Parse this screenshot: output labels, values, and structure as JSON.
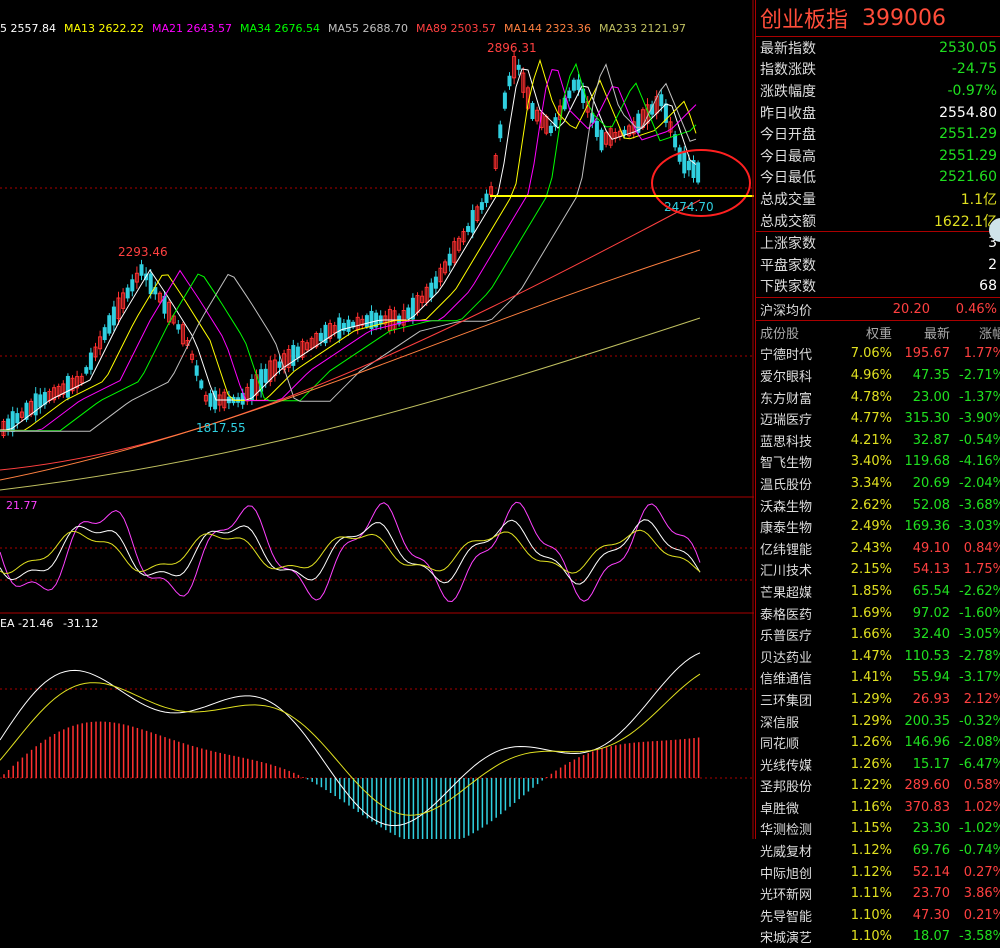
{
  "ma_bar": [
    {
      "label": "5 2557.84",
      "color": "#ffffff"
    },
    {
      "label": "MA13 2622.22",
      "color": "#ffff00"
    },
    {
      "label": "MA21 2643.57",
      "color": "#ff00ff"
    },
    {
      "label": "MA34 2676.54",
      "color": "#00ff00"
    },
    {
      "label": "MA55 2688.70",
      "color": "#c0c0c0"
    },
    {
      "label": "MA89 2503.57",
      "color": "#ff4040"
    },
    {
      "label": "MA144 2323.36",
      "color": "#ff8040"
    },
    {
      "label": "MA233 2121.97",
      "color": "#c0c060"
    }
  ],
  "annotations": {
    "high_top": "2896.31",
    "high_left": "2293.46",
    "low_mid": "1817.55",
    "low_recent": "2474.70"
  },
  "kdj_label": "21.77",
  "macd_label": {
    "a": "EA -21.46",
    "b": "-31.12"
  },
  "header": {
    "name": "创业板指",
    "code": "399006"
  },
  "quote": [
    {
      "label": "最新指数",
      "value": "2530.05",
      "cls": "dn"
    },
    {
      "label": "指数涨跌",
      "value": "-24.75",
      "cls": "dn"
    },
    {
      "label": "涨跌幅度",
      "value": "-0.97%",
      "cls": "dn"
    },
    {
      "label": "昨日收盘",
      "value": "2554.80",
      "cls": "wh"
    },
    {
      "label": "今日开盘",
      "value": "2551.29",
      "cls": "dn"
    },
    {
      "label": "今日最高",
      "value": "2551.29",
      "cls": "dn"
    },
    {
      "label": "今日最低",
      "value": "2521.60",
      "cls": "dn"
    },
    {
      "label": "总成交量",
      "value": "1.1亿",
      "cls": "yl"
    },
    {
      "label": "总成交额",
      "value": "1622.1亿",
      "cls": "yl"
    }
  ],
  "breadth": [
    {
      "label": "上涨家数",
      "value": "3"
    },
    {
      "label": "平盘家数",
      "value": "2"
    },
    {
      "label": "下跌家数",
      "value": "68"
    }
  ],
  "avg": {
    "label": "沪深均价",
    "price": "20.20",
    "pct": "0.46%"
  },
  "table_head": [
    "成份股",
    "权重",
    "最新",
    "涨幅"
  ],
  "stocks": [
    {
      "n": "宁德时代",
      "w": "7.06%",
      "p": "195.67",
      "c": "1.77%",
      "up": true
    },
    {
      "n": "爱尔眼科",
      "w": "4.96%",
      "p": "47.35",
      "c": "-2.71%",
      "up": false
    },
    {
      "n": "东方财富",
      "w": "4.78%",
      "p": "23.00",
      "c": "-1.37%",
      "up": false
    },
    {
      "n": "迈瑞医疗",
      "w": "4.77%",
      "p": "315.30",
      "c": "-3.90%",
      "up": false
    },
    {
      "n": "蓝思科技",
      "w": "4.21%",
      "p": "32.87",
      "c": "-0.54%",
      "up": false
    },
    {
      "n": "智飞生物",
      "w": "3.40%",
      "p": "119.68",
      "c": "-4.16%",
      "up": false
    },
    {
      "n": "温氏股份",
      "w": "3.34%",
      "p": "20.69",
      "c": "-2.04%",
      "up": false
    },
    {
      "n": "沃森生物",
      "w": "2.62%",
      "p": "52.08",
      "c": "-3.68%",
      "up": false
    },
    {
      "n": "康泰生物",
      "w": "2.49%",
      "p": "169.36",
      "c": "-3.03%",
      "up": false
    },
    {
      "n": "亿纬锂能",
      "w": "2.43%",
      "p": "49.10",
      "c": "0.84%",
      "up": true
    },
    {
      "n": "汇川技术",
      "w": "2.15%",
      "p": "54.13",
      "c": "1.75%",
      "up": true
    },
    {
      "n": "芒果超媒",
      "w": "1.85%",
      "p": "65.54",
      "c": "-2.62%",
      "up": false
    },
    {
      "n": "泰格医药",
      "w": "1.69%",
      "p": "97.02",
      "c": "-1.60%",
      "up": false
    },
    {
      "n": "乐普医疗",
      "w": "1.66%",
      "p": "32.40",
      "c": "-3.05%",
      "up": false
    },
    {
      "n": "贝达药业",
      "w": "1.47%",
      "p": "110.53",
      "c": "-2.78%",
      "up": false
    },
    {
      "n": "信维通信",
      "w": "1.41%",
      "p": "55.94",
      "c": "-3.17%",
      "up": false
    },
    {
      "n": "三环集团",
      "w": "1.29%",
      "p": "26.93",
      "c": "2.12%",
      "up": true
    },
    {
      "n": "深信服",
      "w": "1.29%",
      "p": "200.35",
      "c": "-0.32%",
      "up": false
    },
    {
      "n": "同花顺",
      "w": "1.26%",
      "p": "146.96",
      "c": "-2.08%",
      "up": false
    },
    {
      "n": "光线传媒",
      "w": "1.26%",
      "p": "15.17",
      "c": "-6.47%",
      "up": false
    },
    {
      "n": "圣邦股份",
      "w": "1.22%",
      "p": "289.60",
      "c": "0.58%",
      "up": true
    },
    {
      "n": "卓胜微",
      "w": "1.16%",
      "p": "370.83",
      "c": "1.02%",
      "up": true
    },
    {
      "n": "华测检测",
      "w": "1.15%",
      "p": "23.30",
      "c": "-1.02%",
      "up": false
    },
    {
      "n": "光威复材",
      "w": "1.12%",
      "p": "69.76",
      "c": "-0.74%",
      "up": false
    },
    {
      "n": "中际旭创",
      "w": "1.12%",
      "p": "52.14",
      "c": "0.27%",
      "up": true
    },
    {
      "n": "光环新网",
      "w": "1.11%",
      "p": "23.70",
      "c": "3.86%",
      "up": true
    },
    {
      "n": "先导智能",
      "w": "1.10%",
      "p": "47.30",
      "c": "0.21%",
      "up": true
    },
    {
      "n": "宋城演艺",
      "w": "1.10%",
      "p": "18.07",
      "c": "-3.58%",
      "up": false
    }
  ]
}
